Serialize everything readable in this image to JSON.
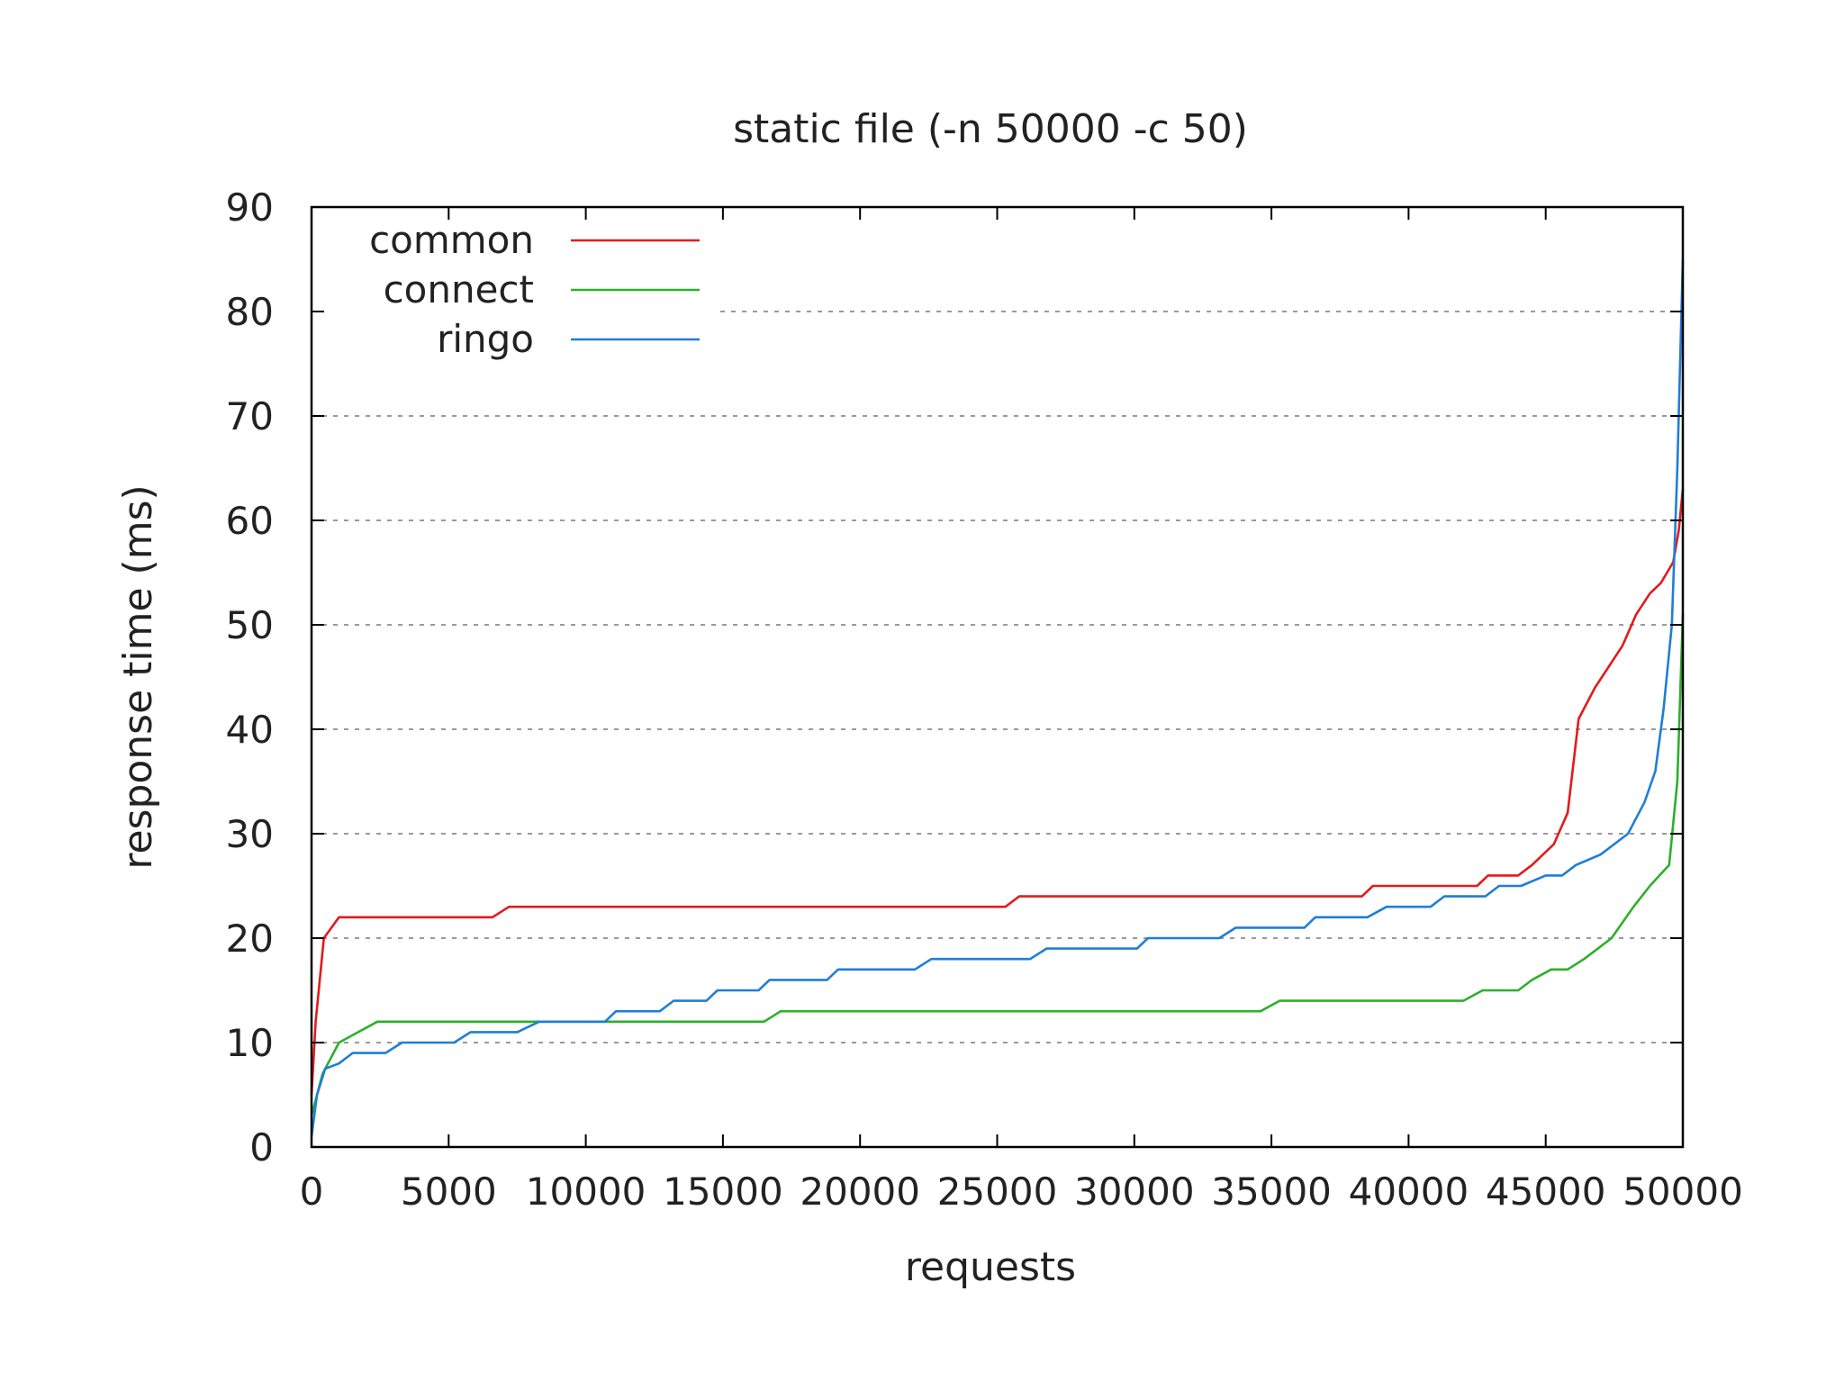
{
  "chart_data": {
    "type": "line",
    "title": "static file (-n 50000 -c 50)",
    "xlabel": "requests",
    "ylabel": "response time (ms)",
    "xlim": [
      0,
      50000
    ],
    "ylim": [
      0,
      90
    ],
    "xticks": [
      0,
      5000,
      10000,
      15000,
      20000,
      25000,
      30000,
      35000,
      40000,
      45000,
      50000
    ],
    "yticks": [
      0,
      10,
      20,
      30,
      40,
      50,
      60,
      70,
      80,
      90
    ],
    "grid": "horizontal-dashed",
    "legend_position": "top-left",
    "series": [
      {
        "name": "common",
        "color": "#e41a1c",
        "points": [
          [
            0,
            5
          ],
          [
            150,
            12
          ],
          [
            450,
            20
          ],
          [
            1000,
            22
          ],
          [
            6600,
            22
          ],
          [
            7200,
            23
          ],
          [
            25300,
            23
          ],
          [
            25800,
            24
          ],
          [
            38300,
            24
          ],
          [
            38700,
            25
          ],
          [
            42500,
            25
          ],
          [
            42900,
            26
          ],
          [
            44000,
            26
          ],
          [
            44500,
            27
          ],
          [
            45300,
            29
          ],
          [
            45800,
            32
          ],
          [
            46200,
            41
          ],
          [
            46800,
            44
          ],
          [
            47300,
            46
          ],
          [
            47800,
            48
          ],
          [
            48300,
            51
          ],
          [
            48800,
            53
          ],
          [
            49200,
            54
          ],
          [
            49650,
            56
          ],
          [
            49850,
            59
          ],
          [
            50000,
            63
          ]
        ]
      },
      {
        "name": "connect",
        "color": "#2cb02c",
        "points": [
          [
            0,
            3
          ],
          [
            400,
            7
          ],
          [
            1000,
            10
          ],
          [
            1700,
            11
          ],
          [
            2400,
            12
          ],
          [
            16500,
            12
          ],
          [
            17100,
            13
          ],
          [
            34600,
            13
          ],
          [
            35300,
            14
          ],
          [
            42000,
            14
          ],
          [
            42700,
            15
          ],
          [
            44000,
            15
          ],
          [
            44500,
            16
          ],
          [
            45200,
            17
          ],
          [
            45800,
            17
          ],
          [
            46400,
            18
          ],
          [
            47400,
            20
          ],
          [
            48200,
            23
          ],
          [
            48800,
            25
          ],
          [
            49500,
            27
          ],
          [
            49800,
            35
          ],
          [
            50000,
            51
          ]
        ]
      },
      {
        "name": "ringo",
        "color": "#1f7ed8",
        "points": [
          [
            0,
            1
          ],
          [
            200,
            5
          ],
          [
            500,
            7.5
          ],
          [
            1000,
            8
          ],
          [
            1500,
            9
          ],
          [
            2700,
            9
          ],
          [
            3300,
            10
          ],
          [
            5200,
            10
          ],
          [
            5800,
            11
          ],
          [
            7500,
            11
          ],
          [
            8300,
            12
          ],
          [
            10700,
            12
          ],
          [
            11100,
            13
          ],
          [
            12700,
            13
          ],
          [
            13200,
            14
          ],
          [
            14400,
            14
          ],
          [
            14800,
            15
          ],
          [
            16300,
            15
          ],
          [
            16700,
            16
          ],
          [
            18800,
            16
          ],
          [
            19200,
            17
          ],
          [
            22000,
            17
          ],
          [
            22600,
            18
          ],
          [
            26200,
            18
          ],
          [
            26800,
            19
          ],
          [
            30100,
            19
          ],
          [
            30500,
            20
          ],
          [
            33100,
            20
          ],
          [
            33700,
            21
          ],
          [
            36200,
            21
          ],
          [
            36600,
            22
          ],
          [
            38500,
            22
          ],
          [
            39200,
            23
          ],
          [
            40800,
            23
          ],
          [
            41300,
            24
          ],
          [
            42800,
            24
          ],
          [
            43300,
            25
          ],
          [
            44100,
            25
          ],
          [
            45000,
            26
          ],
          [
            45600,
            26
          ],
          [
            46100,
            27
          ],
          [
            47000,
            28
          ],
          [
            48000,
            30
          ],
          [
            48600,
            33
          ],
          [
            49000,
            36
          ],
          [
            49300,
            42
          ],
          [
            49600,
            50
          ],
          [
            49800,
            65
          ],
          [
            50000,
            85
          ]
        ]
      }
    ]
  }
}
